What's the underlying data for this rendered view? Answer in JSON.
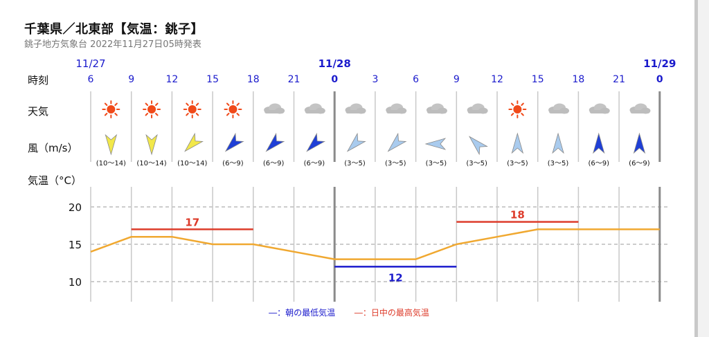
{
  "header": {
    "title": "千葉県／北東部【気温：銚子】",
    "subtitle": "銚子地方気象台 2022年11月27日05時発表"
  },
  "row_labels": {
    "time": "時刻",
    "weather": "天気",
    "wind": "風（m/s）",
    "temp": "気温（°C）"
  },
  "dates": [
    "11/27",
    "11/28",
    "11/29"
  ],
  "hours": [
    "6",
    "9",
    "12",
    "15",
    "18",
    "21",
    "0",
    "3",
    "6",
    "9",
    "12",
    "15",
    "18",
    "21",
    "0"
  ],
  "weather_icons": [
    "sun-icon",
    "sun-icon",
    "sun-icon",
    "sun-icon",
    "cloud-icon",
    "cloud-icon",
    "cloud-icon",
    "cloud-icon",
    "cloud-icon",
    "cloud-icon",
    "sun-icon",
    "cloud-icon",
    "cloud-icon",
    "cloud-icon"
  ],
  "wind": [
    {
      "speed": "(10～14)",
      "direction": "N",
      "color": "#f2e84a"
    },
    {
      "speed": "(10～14)",
      "direction": "N",
      "color": "#f2e84a"
    },
    {
      "speed": "(10～14)",
      "direction": "NE",
      "color": "#f2e84a"
    },
    {
      "speed": "(6～9)",
      "direction": "NE",
      "color": "#1f3fd6"
    },
    {
      "speed": "(6～9)",
      "direction": "NE",
      "color": "#1f3fd6"
    },
    {
      "speed": "(6～9)",
      "direction": "NE",
      "color": "#1f3fd6"
    },
    {
      "speed": "(3～5)",
      "direction": "NE",
      "color": "#a9cbee"
    },
    {
      "speed": "(3～5)",
      "direction": "NE",
      "color": "#a9cbee"
    },
    {
      "speed": "(3～5)",
      "direction": "E",
      "color": "#a9cbee"
    },
    {
      "speed": "(3～5)",
      "direction": "SE",
      "color": "#a9cbee"
    },
    {
      "speed": "(3～5)",
      "direction": "S",
      "color": "#a9cbee"
    },
    {
      "speed": "(3～5)",
      "direction": "S",
      "color": "#a9cbee"
    },
    {
      "speed": "(6～9)",
      "direction": "S",
      "color": "#1f3fd6"
    },
    {
      "speed": "(6～9)",
      "direction": "S",
      "color": "#1f3fd6"
    }
  ],
  "temperature": {
    "y_ticks": [
      "20",
      "15",
      "10"
    ],
    "ylim": [
      6,
      23
    ],
    "series": [
      14,
      16,
      16,
      15,
      15,
      14,
      13,
      13,
      13,
      15,
      16,
      17,
      17,
      17,
      17
    ],
    "min_temp": {
      "value": "12",
      "from_hour_index": 6,
      "to_hour_index": 9,
      "color": "#1a1acc"
    },
    "max_temps": [
      {
        "value": "17",
        "from_hour_index": 1,
        "to_hour_index": 4,
        "color": "#dd3b2a"
      },
      {
        "value": "18",
        "from_hour_index": 9,
        "to_hour_index": 12,
        "color": "#dd3b2a"
      }
    ],
    "line_color": "#f0a830"
  },
  "legend": {
    "min_label": "―：朝の最低気温",
    "max_label": "―：日中の最高気温",
    "min_color": "#1a1acc",
    "max_color": "#dd3b2a"
  }
}
